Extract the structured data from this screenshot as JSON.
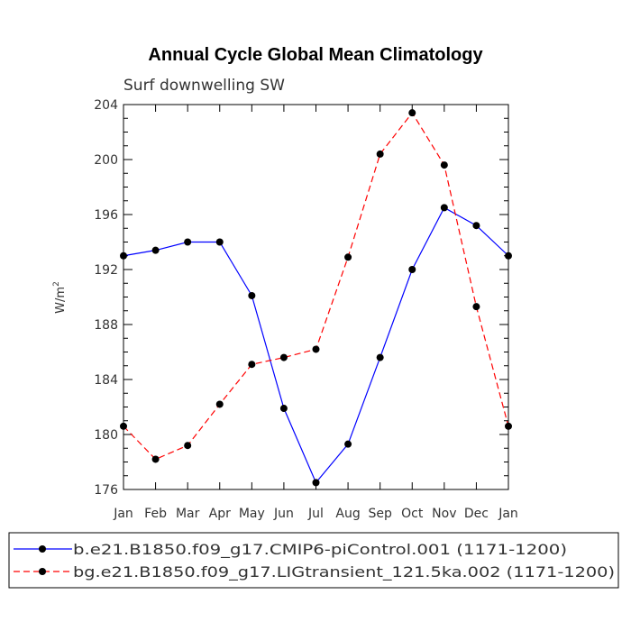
{
  "chart_data": {
    "type": "line",
    "title": "Annual Cycle Global Mean Climatology",
    "subtitle": "Surf downwelling SW",
    "ylabel": "W/m",
    "ylabel_sup": "2",
    "categories": [
      "Jan",
      "Feb",
      "Mar",
      "Apr",
      "May",
      "Jun",
      "Jul",
      "Aug",
      "Sep",
      "Oct",
      "Nov",
      "Dec",
      "Jan"
    ],
    "ylim": [
      176,
      204
    ],
    "yticks": [
      176,
      180,
      184,
      188,
      192,
      196,
      200,
      204
    ],
    "series": [
      {
        "name": "b.e21.B1850.f09_g17.CMIP6-piControl.001 (1171-1200)",
        "color": "#0000ff",
        "dash": "solid",
        "values": [
          193.0,
          193.4,
          194.0,
          194.0,
          190.1,
          181.9,
          176.5,
          179.3,
          185.6,
          192.0,
          196.5,
          195.2,
          193.0
        ]
      },
      {
        "name": "bg.e21.B1850.f09_g17.LIGtransient_121.5ka.002 (1171-1200)",
        "color": "#ff0000",
        "dash": "dashed",
        "values": [
          180.6,
          178.2,
          179.2,
          182.2,
          185.1,
          185.6,
          186.2,
          192.9,
          200.4,
          203.4,
          199.6,
          189.3,
          180.6
        ]
      }
    ],
    "legend_position": "bottom"
  }
}
